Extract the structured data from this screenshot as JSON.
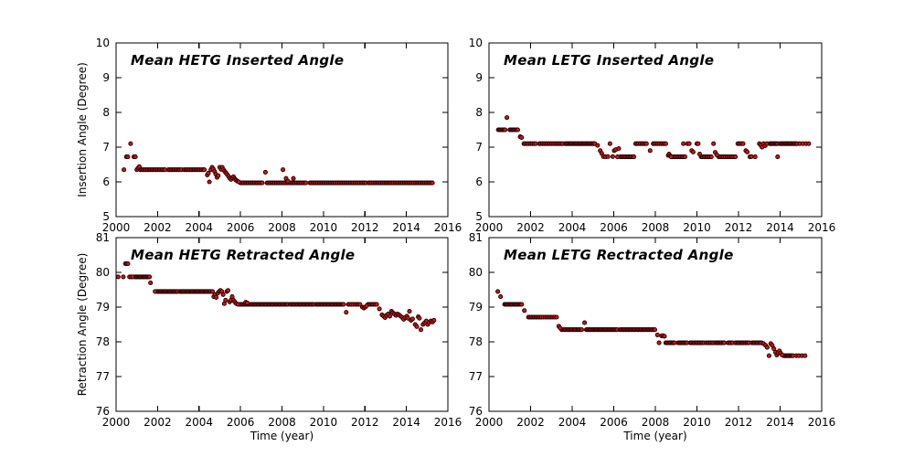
{
  "figure": {
    "background": "#ffffff",
    "frame_color": "#000000",
    "text_color": "#000000",
    "marker_fill": "#cc1414",
    "marker_edge": "#1a0000",
    "runs_format": "[x_start, x_end, y, x_step]"
  },
  "chart_data": [
    {
      "type": "scatter",
      "name": "hetg-inserted",
      "title": "Mean HETG Inserted Angle",
      "ylabel": "Insertion Angle (Degree)",
      "xlabel": "",
      "xlim": [
        2000,
        2016
      ],
      "ylim": [
        5,
        10
      ],
      "xticks": [
        2000,
        2002,
        2004,
        2006,
        2008,
        2010,
        2012,
        2014,
        2016
      ],
      "yticks": [
        5,
        6,
        7,
        8,
        9,
        10
      ],
      "legend": "none",
      "grid": false,
      "runs": [
        [
          2001.17,
          2002.42,
          6.35,
          0.07
        ],
        [
          2002.52,
          2003.2,
          6.35,
          0.07
        ],
        [
          2003.28,
          2004.32,
          6.35,
          0.07
        ],
        [
          2006.0,
          2007.12,
          5.97,
          0.075
        ],
        [
          2007.28,
          2009.2,
          5.97,
          0.075
        ],
        [
          2009.35,
          2012.05,
          5.97,
          0.075
        ],
        [
          2012.18,
          2015.3,
          5.97,
          0.075
        ]
      ],
      "points": [
        [
          2000.38,
          6.35
        ],
        [
          2000.5,
          6.72
        ],
        [
          2000.57,
          6.72
        ],
        [
          2000.7,
          7.1
        ],
        [
          2000.86,
          6.72
        ],
        [
          2000.93,
          6.72
        ],
        [
          2001.0,
          6.35
        ],
        [
          2001.06,
          6.4
        ],
        [
          2001.12,
          6.44
        ],
        [
          2004.4,
          6.2
        ],
        [
          2004.45,
          6.25
        ],
        [
          2004.5,
          6.0
        ],
        [
          2004.57,
          6.35
        ],
        [
          2004.63,
          6.42
        ],
        [
          2004.69,
          6.37
        ],
        [
          2004.75,
          6.3
        ],
        [
          2004.81,
          6.22
        ],
        [
          2004.87,
          6.13
        ],
        [
          2004.93,
          6.18
        ],
        [
          2005.0,
          6.42
        ],
        [
          2005.06,
          6.36
        ],
        [
          2005.12,
          6.42
        ],
        [
          2005.18,
          6.35
        ],
        [
          2005.24,
          6.3
        ],
        [
          2005.3,
          6.26
        ],
        [
          2005.36,
          6.21
        ],
        [
          2005.42,
          6.16
        ],
        [
          2005.48,
          6.11
        ],
        [
          2005.54,
          6.07
        ],
        [
          2005.6,
          6.12
        ],
        [
          2005.66,
          6.15
        ],
        [
          2005.72,
          6.09
        ],
        [
          2005.78,
          6.05
        ],
        [
          2005.85,
          6.02
        ],
        [
          2005.92,
          6.0
        ],
        [
          2007.2,
          6.28
        ],
        [
          2008.05,
          6.35
        ],
        [
          2008.2,
          6.1
        ],
        [
          2008.28,
          6.02
        ],
        [
          2008.55,
          6.1
        ]
      ]
    },
    {
      "type": "scatter",
      "name": "letg-inserted",
      "title": "Mean LETG Inserted Angle",
      "ylabel": "",
      "xlabel": "",
      "xlim": [
        2000,
        2016
      ],
      "ylim": [
        5,
        10
      ],
      "xticks": [
        2000,
        2002,
        2004,
        2006,
        2008,
        2010,
        2012,
        2014,
        2016
      ],
      "yticks": [
        5,
        6,
        7,
        8,
        9,
        10
      ],
      "legend": "none",
      "grid": false,
      "runs": [
        [
          2000.45,
          2000.78,
          7.5,
          0.055
        ],
        [
          2001.0,
          2001.42,
          7.5,
          0.055
        ],
        [
          2001.68,
          2002.3,
          7.1,
          0.08
        ],
        [
          2002.42,
          2003.55,
          7.1,
          0.075
        ],
        [
          2003.66,
          2005.1,
          7.1,
          0.055
        ],
        [
          2006.32,
          2006.98,
          6.72,
          0.065
        ],
        [
          2007.05,
          2007.6,
          7.1,
          0.075
        ],
        [
          2007.9,
          2008.55,
          7.1,
          0.075
        ],
        [
          2008.8,
          2009.45,
          6.72,
          0.07
        ],
        [
          2010.2,
          2010.75,
          6.72,
          0.07
        ],
        [
          2011.05,
          2011.9,
          6.72,
          0.08
        ],
        [
          2013.5,
          2013.92,
          7.1,
          0.055
        ],
        [
          2014.0,
          2014.85,
          7.1,
          0.055
        ]
      ],
      "points": [
        [
          2000.86,
          7.85
        ],
        [
          2001.5,
          7.3
        ],
        [
          2001.57,
          7.28
        ],
        [
          2005.22,
          7.05
        ],
        [
          2005.35,
          6.9
        ],
        [
          2005.42,
          6.82
        ],
        [
          2005.5,
          6.73
        ],
        [
          2005.6,
          6.72
        ],
        [
          2005.72,
          6.73
        ],
        [
          2005.82,
          7.1
        ],
        [
          2005.95,
          6.73
        ],
        [
          2006.02,
          6.9
        ],
        [
          2006.1,
          6.93
        ],
        [
          2006.18,
          6.72
        ],
        [
          2006.24,
          6.96
        ],
        [
          2007.75,
          6.9
        ],
        [
          2008.62,
          6.76
        ],
        [
          2008.66,
          6.8
        ],
        [
          2008.71,
          6.75
        ],
        [
          2008.76,
          6.72
        ],
        [
          2009.35,
          7.1
        ],
        [
          2009.55,
          7.1
        ],
        [
          2009.63,
          7.1
        ],
        [
          2009.75,
          6.9
        ],
        [
          2009.82,
          6.86
        ],
        [
          2010.0,
          7.1
        ],
        [
          2010.06,
          7.1
        ],
        [
          2010.13,
          6.8
        ],
        [
          2010.8,
          7.1
        ],
        [
          2010.88,
          6.85
        ],
        [
          2010.96,
          6.78
        ],
        [
          2011.97,
          7.1
        ],
        [
          2012.05,
          7.1
        ],
        [
          2012.13,
          7.1
        ],
        [
          2012.22,
          7.1
        ],
        [
          2012.35,
          6.9
        ],
        [
          2012.42,
          6.86
        ],
        [
          2012.55,
          6.72
        ],
        [
          2012.62,
          6.73
        ],
        [
          2012.8,
          6.72
        ],
        [
          2013.0,
          7.1
        ],
        [
          2013.07,
          7.06
        ],
        [
          2013.13,
          7.0
        ],
        [
          2013.2,
          7.1
        ],
        [
          2013.28,
          7.04
        ],
        [
          2013.36,
          7.1
        ],
        [
          2013.88,
          6.72
        ],
        [
          2014.95,
          7.1
        ],
        [
          2015.1,
          7.1
        ],
        [
          2015.25,
          7.1
        ],
        [
          2015.38,
          7.1
        ]
      ]
    },
    {
      "type": "scatter",
      "name": "hetg-retracted",
      "title": "Mean HETG Retracted Angle",
      "ylabel": "Retraction Angle (Degree)",
      "xlabel": "Time (year)",
      "xlim": [
        2000,
        2016
      ],
      "ylim": [
        76,
        81
      ],
      "xticks": [
        2000,
        2002,
        2004,
        2006,
        2008,
        2010,
        2012,
        2014,
        2016
      ],
      "yticks": [
        76,
        77,
        78,
        79,
        80,
        81
      ],
      "legend": "none",
      "grid": false,
      "runs": [
        [
          2000.9,
          2001.62,
          79.87,
          0.055
        ],
        [
          2001.98,
          2003.0,
          79.45,
          0.055
        ],
        [
          2003.08,
          2004.58,
          79.45,
          0.055
        ],
        [
          2005.95,
          2008.3,
          79.08,
          0.06
        ],
        [
          2008.4,
          2009.55,
          79.08,
          0.06
        ],
        [
          2009.65,
          2011.02,
          79.08,
          0.06
        ],
        [
          2011.2,
          2011.8,
          79.08,
          0.08
        ],
        [
          2012.15,
          2012.62,
          79.08,
          0.07
        ]
      ],
      "points": [
        [
          2000.1,
          79.87
        ],
        [
          2000.35,
          79.87
        ],
        [
          2000.45,
          80.25
        ],
        [
          2000.51,
          80.25
        ],
        [
          2000.57,
          80.25
        ],
        [
          2000.65,
          79.87
        ],
        [
          2000.73,
          79.87
        ],
        [
          2000.8,
          79.87
        ],
        [
          2001.66,
          79.7
        ],
        [
          2001.88,
          79.45
        ],
        [
          2004.65,
          79.45
        ],
        [
          2004.71,
          79.3
        ],
        [
          2004.77,
          79.36
        ],
        [
          2004.83,
          79.28
        ],
        [
          2004.9,
          79.4
        ],
        [
          2004.97,
          79.45
        ],
        [
          2005.03,
          79.48
        ],
        [
          2005.1,
          79.45
        ],
        [
          2005.16,
          79.36
        ],
        [
          2005.22,
          79.1
        ],
        [
          2005.28,
          79.2
        ],
        [
          2005.34,
          79.45
        ],
        [
          2005.4,
          79.48
        ],
        [
          2005.48,
          79.15
        ],
        [
          2005.54,
          79.2
        ],
        [
          2005.6,
          79.3
        ],
        [
          2005.66,
          79.2
        ],
        [
          2005.72,
          79.15
        ],
        [
          2005.8,
          79.1
        ],
        [
          2005.88,
          79.08
        ],
        [
          2006.25,
          79.14
        ],
        [
          2006.32,
          79.12
        ],
        [
          2011.1,
          78.85
        ],
        [
          2011.88,
          79.0
        ],
        [
          2011.95,
          78.97
        ],
        [
          2012.02,
          79.0
        ],
        [
          2012.08,
          79.04
        ],
        [
          2012.7,
          78.95
        ],
        [
          2012.82,
          78.78
        ],
        [
          2012.9,
          78.74
        ],
        [
          2012.97,
          78.7
        ],
        [
          2013.04,
          78.76
        ],
        [
          2013.12,
          78.8
        ],
        [
          2013.2,
          78.74
        ],
        [
          2013.28,
          78.88
        ],
        [
          2013.34,
          78.84
        ],
        [
          2013.42,
          78.8
        ],
        [
          2013.5,
          78.76
        ],
        [
          2013.57,
          78.8
        ],
        [
          2013.64,
          78.78
        ],
        [
          2013.72,
          78.74
        ],
        [
          2013.8,
          78.7
        ],
        [
          2013.87,
          78.65
        ],
        [
          2013.94,
          78.7
        ],
        [
          2014.02,
          78.74
        ],
        [
          2014.08,
          78.68
        ],
        [
          2014.15,
          78.88
        ],
        [
          2014.22,
          78.62
        ],
        [
          2014.3,
          78.66
        ],
        [
          2014.42,
          78.5
        ],
        [
          2014.5,
          78.44
        ],
        [
          2014.57,
          78.72
        ],
        [
          2014.63,
          78.68
        ],
        [
          2014.7,
          78.35
        ],
        [
          2014.8,
          78.5
        ],
        [
          2014.88,
          78.55
        ],
        [
          2014.96,
          78.6
        ],
        [
          2015.03,
          78.5
        ],
        [
          2015.1,
          78.56
        ],
        [
          2015.18,
          78.6
        ],
        [
          2015.26,
          78.57
        ],
        [
          2015.33,
          78.62
        ]
      ]
    },
    {
      "type": "scatter",
      "name": "letg-retracted",
      "title": "Mean LETG Rectracted Angle",
      "ylabel": "",
      "xlabel": "Time (year)",
      "xlim": [
        2000,
        2016
      ],
      "ylim": [
        76,
        81
      ],
      "xticks": [
        2000,
        2002,
        2004,
        2006,
        2008,
        2010,
        2012,
        2014,
        2016
      ],
      "yticks": [
        76,
        77,
        78,
        79,
        80,
        81
      ],
      "legend": "none",
      "grid": false,
      "runs": [
        [
          2000.75,
          2001.62,
          79.08,
          0.055
        ],
        [
          2001.9,
          2002.55,
          78.71,
          0.07
        ],
        [
          2002.62,
          2003.3,
          78.71,
          0.09
        ],
        [
          2003.5,
          2004.5,
          78.35,
          0.06
        ],
        [
          2004.68,
          2006.2,
          78.35,
          0.055
        ],
        [
          2006.3,
          2008.02,
          78.35,
          0.06
        ],
        [
          2008.5,
          2008.95,
          77.97,
          0.06
        ],
        [
          2009.1,
          2009.55,
          77.97,
          0.06
        ],
        [
          2009.68,
          2010.35,
          77.97,
          0.065
        ],
        [
          2010.45,
          2010.8,
          77.97,
          0.07
        ],
        [
          2010.9,
          2011.35,
          77.97,
          0.06
        ],
        [
          2011.5,
          2011.72,
          77.97,
          0.07
        ],
        [
          2011.85,
          2012.55,
          77.97,
          0.06
        ],
        [
          2012.65,
          2013.12,
          77.97,
          0.065
        ],
        [
          2014.18,
          2014.65,
          77.6,
          0.055
        ]
      ],
      "points": [
        [
          2000.42,
          79.45
        ],
        [
          2000.56,
          79.3
        ],
        [
          2001.7,
          78.9
        ],
        [
          2003.36,
          78.45
        ],
        [
          2003.42,
          78.4
        ],
        [
          2004.6,
          78.55
        ],
        [
          2008.1,
          78.2
        ],
        [
          2008.18,
          77.97
        ],
        [
          2008.3,
          78.17
        ],
        [
          2008.37,
          78.18
        ],
        [
          2008.44,
          78.16
        ],
        [
          2013.2,
          77.95
        ],
        [
          2013.3,
          77.9
        ],
        [
          2013.38,
          77.84
        ],
        [
          2013.47,
          77.6
        ],
        [
          2013.55,
          77.95
        ],
        [
          2013.62,
          77.9
        ],
        [
          2013.7,
          77.8
        ],
        [
          2013.78,
          77.7
        ],
        [
          2013.84,
          77.62
        ],
        [
          2013.9,
          77.68
        ],
        [
          2013.97,
          77.74
        ],
        [
          2014.03,
          77.67
        ],
        [
          2014.1,
          77.62
        ],
        [
          2014.78,
          77.6
        ],
        [
          2014.9,
          77.6
        ],
        [
          2015.05,
          77.6
        ],
        [
          2015.2,
          77.6
        ]
      ]
    }
  ]
}
